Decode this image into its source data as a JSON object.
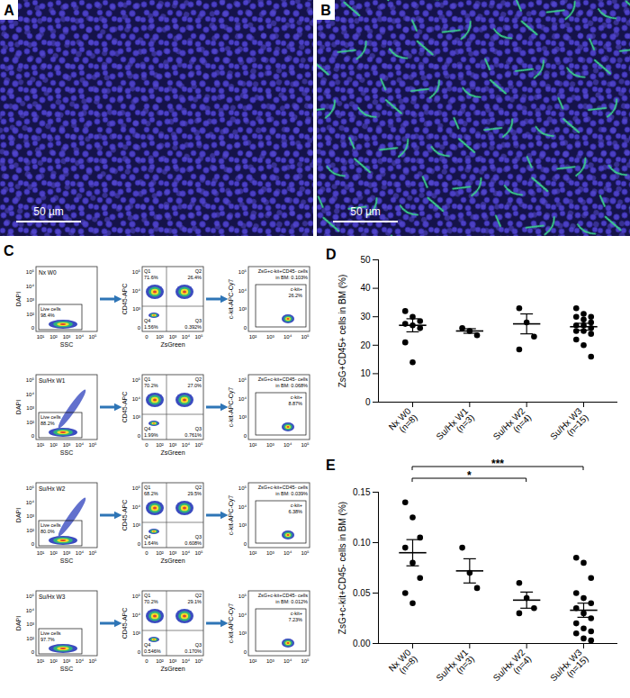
{
  "panels": {
    "A": {
      "label": "A",
      "scale_bar": "50 µm"
    },
    "B": {
      "label": "B",
      "scale_bar": "50 µm"
    }
  },
  "flow": {
    "label": "C",
    "gate_live": "Live cells",
    "gate_ckit": "c-kit+",
    "quadrants": [
      "Q1",
      "Q2",
      "Q3",
      "Q4"
    ],
    "plots": [
      {
        "x_label": "SSC",
        "y_label": "DAPI",
        "x_ticks": [
          "10¹",
          "10²",
          "10³",
          "10⁴",
          "10⁵"
        ],
        "y_ticks": [
          "0",
          "10²",
          "10³",
          "10⁴",
          "10⁵"
        ]
      },
      {
        "x_label": "ZsGreen",
        "y_label": "CD45-APC",
        "x_ticks": [
          "0",
          "10²",
          "10³",
          "10⁴",
          "10⁵"
        ],
        "y_ticks": [
          "0",
          "10³",
          "10⁴",
          "10⁵"
        ]
      },
      {
        "y_label": "c-kit-APC-Cy7",
        "x_ticks": [
          "10²",
          "10³",
          "10⁴",
          "10⁵"
        ],
        "y_ticks": [
          "0",
          "10³",
          "10⁴",
          "10⁵"
        ]
      }
    ],
    "rows": [
      {
        "name": "Nx W0",
        "live": "98.4%",
        "q": [
          "71.6%",
          "26.4%",
          "0.392%",
          "1.56%"
        ],
        "summary": [
          "ZsG+c-kit+CD45- cells",
          "in BM: 0.103%"
        ],
        "ckit": "26.2%"
      },
      {
        "name": "Su/Hx W1",
        "live": "88.2%",
        "q": [
          "70.2%",
          "27.0%",
          "0.761%",
          "1.99%"
        ],
        "summary": [
          "ZsG+c-kit+CD45- cells",
          "in BM: 0.068%"
        ],
        "ckit": "8.87%"
      },
      {
        "name": "Su/Hx W2",
        "live": "80.0%",
        "q": [
          "68.2%",
          "29.5%",
          "0.608%",
          "1.64%"
        ],
        "summary": [
          "ZsG+c-kit+CD45- cells",
          "in BM: 0.039%"
        ],
        "ckit": "6.38%"
      },
      {
        "name": "Su/Hx W3",
        "live": "97.7%",
        "q": [
          "70.2%",
          "29.1%",
          "0.170%",
          "0.546%"
        ],
        "summary": [
          "ZsG+c-kit+CD45- cells",
          "in BM: 0.012%"
        ],
        "ckit": "7.23%"
      }
    ]
  },
  "chart_data": [
    {
      "label": "D",
      "type": "scatter",
      "y_label": "ZsG+CD45+ cells in BM (%)",
      "categories": [
        "Nx W0\n(n=8)",
        "Su/Hx W1\n(n=3)",
        "Su/Hx W2\n(n=4)",
        "Su/Hx W3\n(n=15)"
      ],
      "values": [
        [
          32,
          30,
          28.5,
          27.5,
          27,
          26,
          21,
          14
        ],
        [
          26,
          25,
          23.5
        ],
        [
          33,
          28,
          23,
          18.5
        ],
        [
          33,
          31,
          30,
          30,
          29,
          28,
          27,
          27,
          26,
          25,
          25,
          24,
          22,
          20,
          16
        ]
      ],
      "mean": [
        27,
        25,
        27.5,
        26.5
      ],
      "sem": [
        2.3,
        0.8,
        3.5,
        1.2
      ],
      "color": "#000000",
      "ylim": [
        0,
        50
      ],
      "yticks": [
        0,
        10,
        20,
        30,
        40,
        50
      ]
    },
    {
      "label": "E",
      "type": "scatter",
      "y_label": "ZsG+c-kit+CD45- cells in BM (%)",
      "categories": [
        "Nx W0\n(n=8)",
        "Su/Hx W1\n(n=3)",
        "Su/Hx W2\n(n=4)",
        "Su/Hx W3\n(n=15)"
      ],
      "values": [
        [
          0.14,
          0.125,
          0.105,
          0.095,
          0.08,
          0.065,
          0.05,
          0.04
        ],
        [
          0.095,
          0.07,
          0.055
        ],
        [
          0.06,
          0.045,
          0.035,
          0.03
        ],
        [
          0.085,
          0.08,
          0.065,
          0.05,
          0.045,
          0.04,
          0.035,
          0.03,
          0.025,
          0.02,
          0.015,
          0.012,
          0.01,
          0.005,
          0.003
        ]
      ],
      "mean": [
        0.09,
        0.072,
        0.043,
        0.033
      ],
      "sem": [
        0.013,
        0.012,
        0.008,
        0.007
      ],
      "color": "#000000",
      "ylim": [
        0,
        0.15
      ],
      "yticks": [
        {
          "value": 0,
          "label": "0.00"
        },
        {
          "value": 0.05,
          "label": "0.05"
        },
        {
          "value": 0.1,
          "label": "0.10"
        },
        {
          "value": 0.15,
          "label": "0.15"
        }
      ],
      "annotations": [
        {
          "from": "Nx W0\n(n=8)",
          "to": "Su/Hx W3\n(n=15)",
          "label": "***"
        },
        {
          "from": "Nx W0\n(n=8)",
          "to": "Su/Hx W2\n(n=4)",
          "label": "*"
        }
      ]
    }
  ]
}
